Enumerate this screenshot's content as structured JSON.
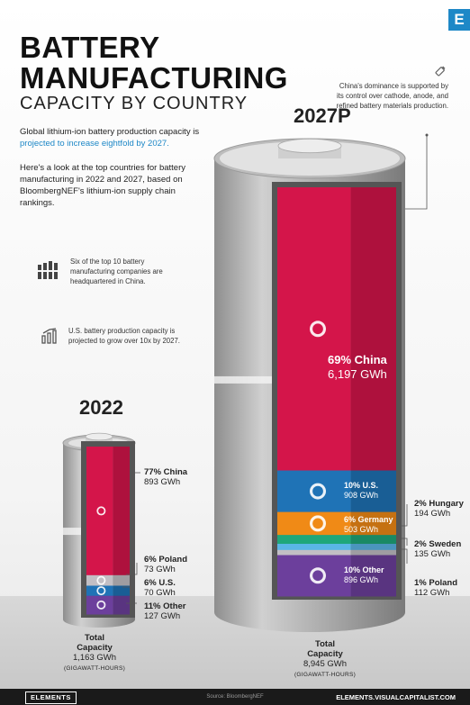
{
  "logo_letter": "E",
  "header": {
    "title_line1": "BATTERY",
    "title_line2": "MANUFACTURING",
    "subtitle": "CAPACITY BY COUNTRY"
  },
  "intro": {
    "text1": "Global lithium-ion battery production capacity is ",
    "text1_highlight": "projected to increase eightfold by 2027.",
    "text2": "Here's a look at the top countries for battery manufacturing in 2022 and 2027, based on BloombergNEF's lithium-ion supply chain rankings."
  },
  "notes": {
    "companies": "Six of the top 10 battery manufacturing companies are headquartered in China.",
    "us_growth": "U.S. battery production capacity is projected to grow over 10x by 2027.",
    "china_dominance": "China's dominance is supported by its control over cathode, anode, and refined battery materials production."
  },
  "chart_data": [
    {
      "type": "bar",
      "title": "2022",
      "units": "GWh",
      "series": [
        {
          "name": "China",
          "share": "77%",
          "value": 893,
          "label": "893 GWh",
          "color": "#d4154a"
        },
        {
          "name": "Poland",
          "share": "6%",
          "value": 73,
          "label": "73 GWh",
          "color": "#c2bfc4"
        },
        {
          "name": "U.S.",
          "share": "6%",
          "value": 70,
          "label": "70 GWh",
          "color": "#1f73b6"
        },
        {
          "name": "Other",
          "share": "11%",
          "value": 127,
          "label": "127 GWh",
          "color": "#6c3f9c"
        }
      ],
      "total_label": "Total\nCapacity",
      "total_value": "1,163 GWh",
      "total_units": "(GIGAWATT-HOURS)"
    },
    {
      "type": "bar",
      "title": "2027P",
      "units": "GWh",
      "series": [
        {
          "name": "China",
          "share": "69%",
          "value": 6197,
          "label": "6,197 GWh",
          "color": "#d4154a"
        },
        {
          "name": "U.S.",
          "share": "10%",
          "value": 908,
          "label": "908 GWh",
          "color": "#1f73b6"
        },
        {
          "name": "Germany",
          "share": "6%",
          "value": 503,
          "label": "503 GWh",
          "color": "#f08a16"
        },
        {
          "name": "Hungary",
          "share": "2%",
          "value": 194,
          "label": "194 GWh",
          "color": "#1fa77a"
        },
        {
          "name": "Sweden",
          "share": "2%",
          "value": 135,
          "label": "135 GWh",
          "color": "#5ab6e6"
        },
        {
          "name": "Poland",
          "share": "1%",
          "value": 112,
          "label": "112 GWh",
          "color": "#c2bfc4"
        },
        {
          "name": "Other",
          "share": "10%",
          "value": 896,
          "label": "896 GWh",
          "color": "#6c3f9c"
        }
      ],
      "total_label": "Total\nCapacity",
      "total_value": "8,945 GWh",
      "total_units": "(GIGAWATT-HOURS)"
    }
  ],
  "footer": {
    "brand": "ELEMENTS",
    "source": "Source: BloombergNEF",
    "site": "ELEMENTS.VISUALCAPITALIST.COM"
  }
}
